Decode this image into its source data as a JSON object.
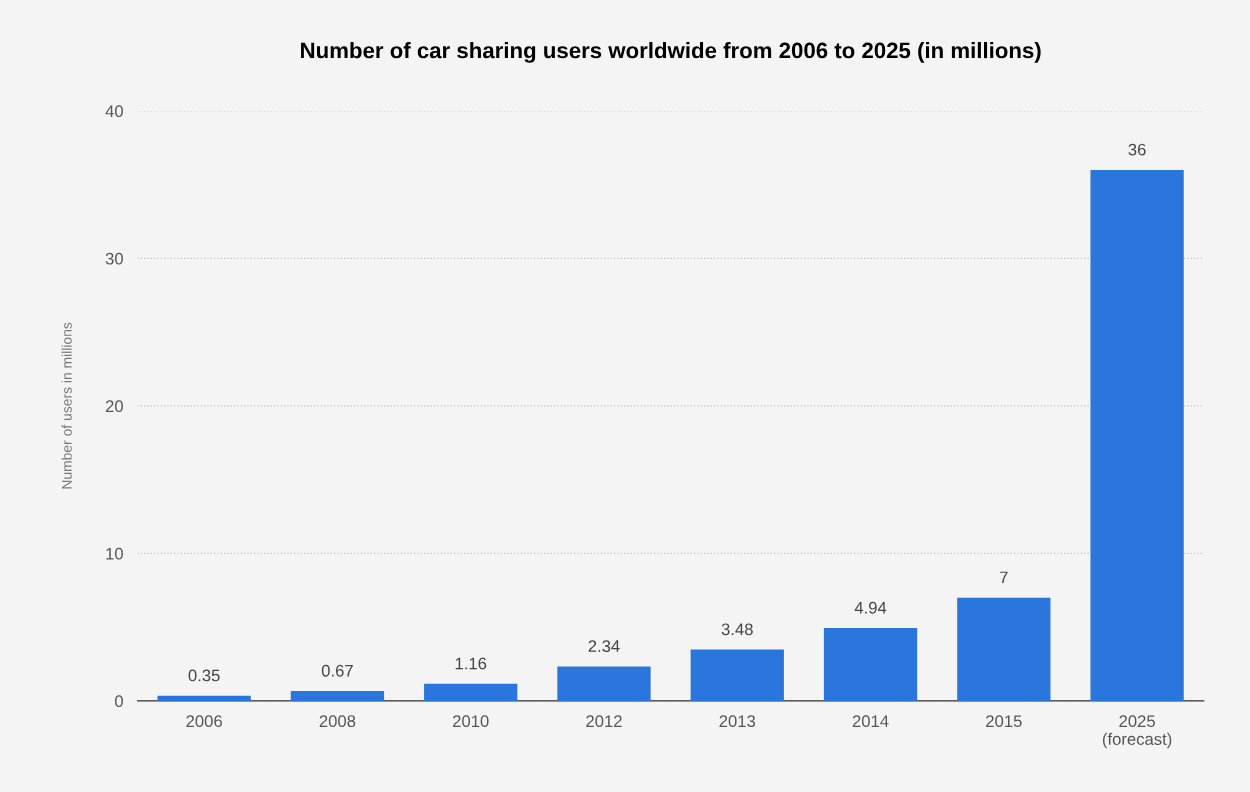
{
  "chart_data": {
    "type": "bar",
    "title": "Number of car sharing users worldwide from 2006 to 2025 (in millions)",
    "ylabel": "Number of users in millions",
    "categories": [
      "2006",
      "2008",
      "2010",
      "2012",
      "2013",
      "2014",
      "2015",
      "2025\n(forecast)"
    ],
    "values": [
      0.35,
      0.67,
      1.16,
      2.34,
      3.48,
      4.94,
      7,
      36
    ],
    "color": "#2a76dd",
    "ylim": [
      0,
      40
    ],
    "yticks": [
      0,
      10,
      20,
      30,
      40
    ],
    "grid": "y",
    "data_labels": true,
    "legend": false
  }
}
